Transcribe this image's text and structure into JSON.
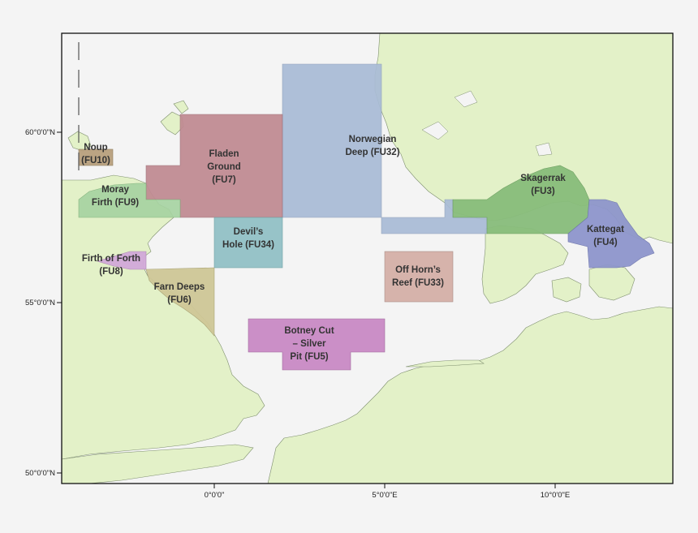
{
  "map": {
    "sea_color": "#f4f4f4",
    "land_color": "#e3f1c8",
    "y_ticks": [
      "60°0'0\"N",
      "55°0'0\"N",
      "50°0'0\"N"
    ],
    "x_ticks": [
      "0°0'0\"",
      "5°0'0\"E",
      "10°0'0\"E"
    ],
    "units": [
      {
        "id": "FU10",
        "line1": "Noup",
        "line2": "(FU10)",
        "line3": "",
        "color": "#b8a07d"
      },
      {
        "id": "FU9",
        "line1": "Moray",
        "line2": "Firth (FU9)",
        "line3": "",
        "color": "#a6d3a1"
      },
      {
        "id": "FU7",
        "line1": "Fladen",
        "line2": "Ground",
        "line3": "(FU7)",
        "color": "#c08a92"
      },
      {
        "id": "FU32",
        "line1": "Norwegian",
        "line2": "Deep (FU32)",
        "line3": "",
        "color": "#a9bcd6"
      },
      {
        "id": "FU3",
        "line1": "Skagerrak",
        "line2": "(FU3)",
        "line3": "",
        "color": "#88bd7b"
      },
      {
        "id": "FU4",
        "line1": "Kattegat",
        "line2": "(FU4)",
        "line3": "",
        "color": "#8e96cc"
      },
      {
        "id": "FU34",
        "line1": "Devil’s",
        "line2": "Hole (FU34)",
        "line3": "",
        "color": "#93c1c6"
      },
      {
        "id": "FU8",
        "line1": "Firth of Forth",
        "line2": "(FU8)",
        "line3": "",
        "color": "#d2a9d9"
      },
      {
        "id": "FU6",
        "line1": "Farn Deeps",
        "line2": "(FU6)",
        "line3": "",
        "color": "#cfc797"
      },
      {
        "id": "FU33",
        "line1": "Off Horn’s",
        "line2": "Reef (FU33)",
        "line3": "",
        "color": "#d5b0a8"
      },
      {
        "id": "FU5",
        "line1": "Botney Cut",
        "line2": "– Silver",
        "line3": "Pit (FU5)",
        "color": "#c98ac5"
      }
    ]
  }
}
